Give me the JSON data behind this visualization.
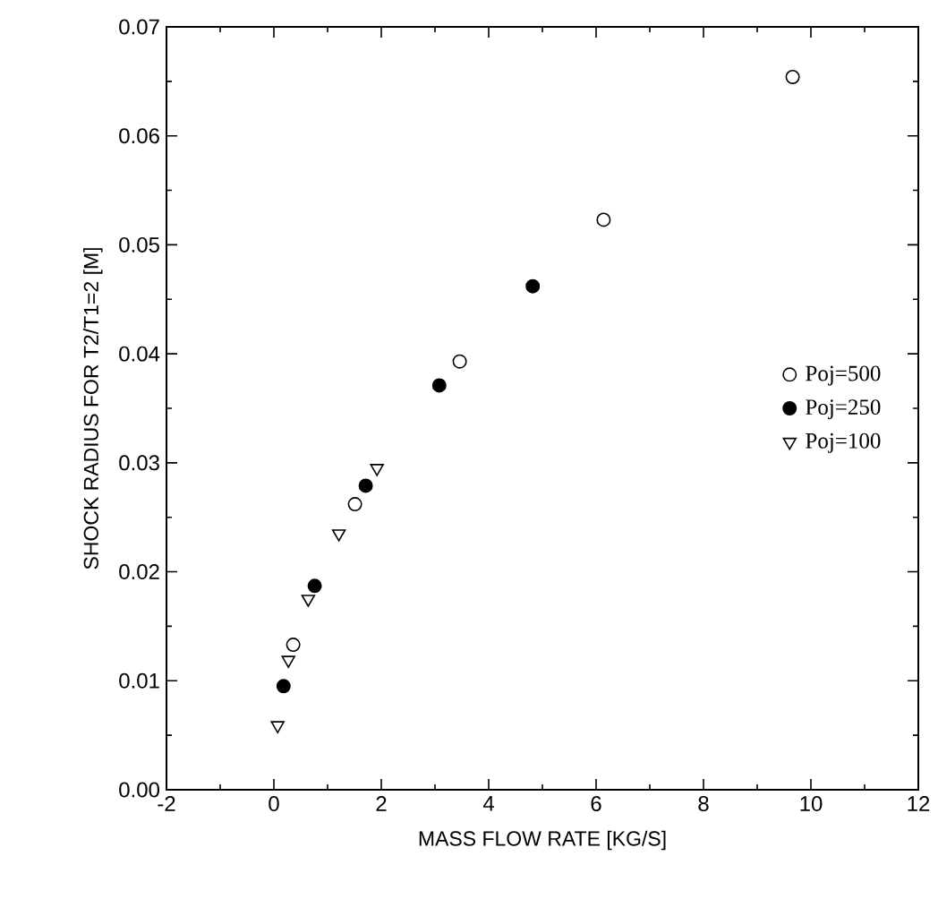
{
  "chart_data": {
    "type": "scatter",
    "xlabel": "MASS FLOW RATE [KG/S]",
    "ylabel": "SHOCK RADIUS FOR T2/T1=2 [M]",
    "xlim": [
      -2,
      12
    ],
    "xticks": [
      -2,
      0,
      2,
      4,
      6,
      8,
      10,
      12
    ],
    "ylim": [
      0,
      0.07
    ],
    "yticks": [
      {
        "value": 0,
        "label": "0.00"
      },
      {
        "value": 0.01,
        "label": "0.01"
      },
      {
        "value": 0.02,
        "label": "0.02"
      },
      {
        "value": 0.03,
        "label": "0.03"
      },
      {
        "value": 0.04,
        "label": "0.04"
      },
      {
        "value": 0.05,
        "label": "0.05"
      },
      {
        "value": 0.06,
        "label": "0.06"
      },
      {
        "value": 0.07,
        "label": "0.07"
      }
    ],
    "legend": "right",
    "grid": false,
    "series": [
      {
        "name": "Poj=500",
        "color": "#000000",
        "marker": "circle",
        "x": [
          0.36,
          1.51,
          3.46,
          6.14,
          9.66
        ],
        "values": [
          0.0133,
          0.0262,
          0.0393,
          0.0523,
          0.0654
        ]
      },
      {
        "name": "Poj=250",
        "color": "#000000",
        "marker": "circle",
        "x": [
          0.18,
          0.76,
          1.71,
          3.08,
          4.82
        ],
        "values": [
          0.0095,
          0.0187,
          0.0279,
          0.0371,
          0.0462
        ]
      },
      {
        "name": "Poj=100",
        "color": "#000000",
        "marker": "triangle",
        "x": [
          0.07,
          0.27,
          0.64,
          1.21,
          1.92
        ],
        "values": [
          0.0059,
          0.0119,
          0.0175,
          0.0235,
          0.0295
        ]
      }
    ]
  }
}
